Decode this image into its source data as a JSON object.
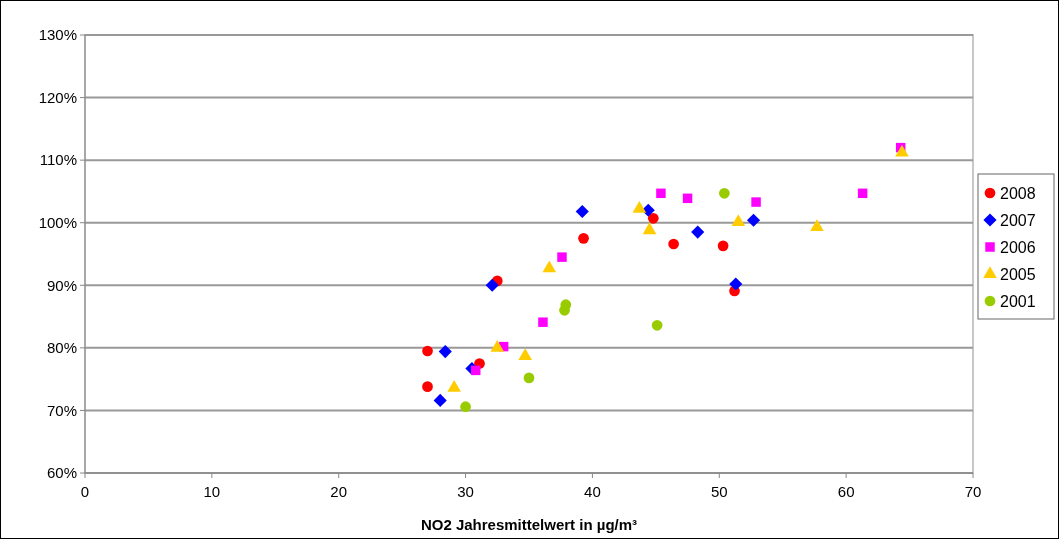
{
  "chart_data": {
    "type": "scatter",
    "xlabel": "NO2 Jahresmittelwert in µg/m³",
    "xlim": [
      0,
      70
    ],
    "xticks": [
      0,
      10,
      20,
      30,
      40,
      50,
      60,
      70
    ],
    "ylim": [
      60,
      130
    ],
    "yticks": [
      {
        "value": 60,
        "label": "60%"
      },
      {
        "value": 70,
        "label": "70%"
      },
      {
        "value": 80,
        "label": "80%"
      },
      {
        "value": 90,
        "label": "90%"
      },
      {
        "value": 100,
        "label": "100%"
      },
      {
        "value": 110,
        "label": "110%"
      },
      {
        "value": 120,
        "label": "120%"
      },
      {
        "value": 130,
        "label": "130%"
      }
    ],
    "grid": "y",
    "legend": "right",
    "series": [
      {
        "name": "2008",
        "color": "#ff0000",
        "marker": "circle",
        "x": [
          27.0,
          27.0,
          31.1,
          32.5,
          39.3,
          44.8,
          46.4,
          50.3,
          51.2
        ],
        "values": [
          79.5,
          73.8,
          77.5,
          90.7,
          97.5,
          100.7,
          96.6,
          96.3,
          89.1
        ]
      },
      {
        "name": "2007",
        "color": "#0000ff",
        "marker": "diamond",
        "x": [
          28.4,
          28.0,
          30.5,
          32.1,
          39.2,
          44.4,
          48.3,
          51.3,
          52.7
        ],
        "values": [
          79.4,
          71.6,
          76.7,
          90.0,
          101.8,
          102.0,
          98.5,
          90.2,
          100.4
        ]
      },
      {
        "name": "2006",
        "color": "#ff00ff",
        "marker": "square",
        "x": [
          30.8,
          33.0,
          36.1,
          37.6,
          45.4,
          47.5,
          52.9,
          61.3,
          64.3
        ],
        "values": [
          76.4,
          80.2,
          84.1,
          94.5,
          104.7,
          103.9,
          103.3,
          104.7,
          112.0
        ]
      },
      {
        "name": "2005",
        "color": "#ffcc00",
        "marker": "triangle",
        "x": [
          29.1,
          32.5,
          34.7,
          36.6,
          43.7,
          44.5,
          51.5,
          57.7,
          64.4
        ],
        "values": [
          73.6,
          80.0,
          78.7,
          92.7,
          102.2,
          98.8,
          100.1,
          99.3,
          111.2
        ]
      },
      {
        "name": "2001",
        "color": "#99cc00",
        "marker": "circle",
        "x": [
          30.0,
          35.0,
          37.9,
          37.8,
          45.1,
          50.4
        ],
        "values": [
          70.6,
          75.2,
          86.9,
          86.0,
          83.6,
          104.7
        ]
      }
    ]
  }
}
